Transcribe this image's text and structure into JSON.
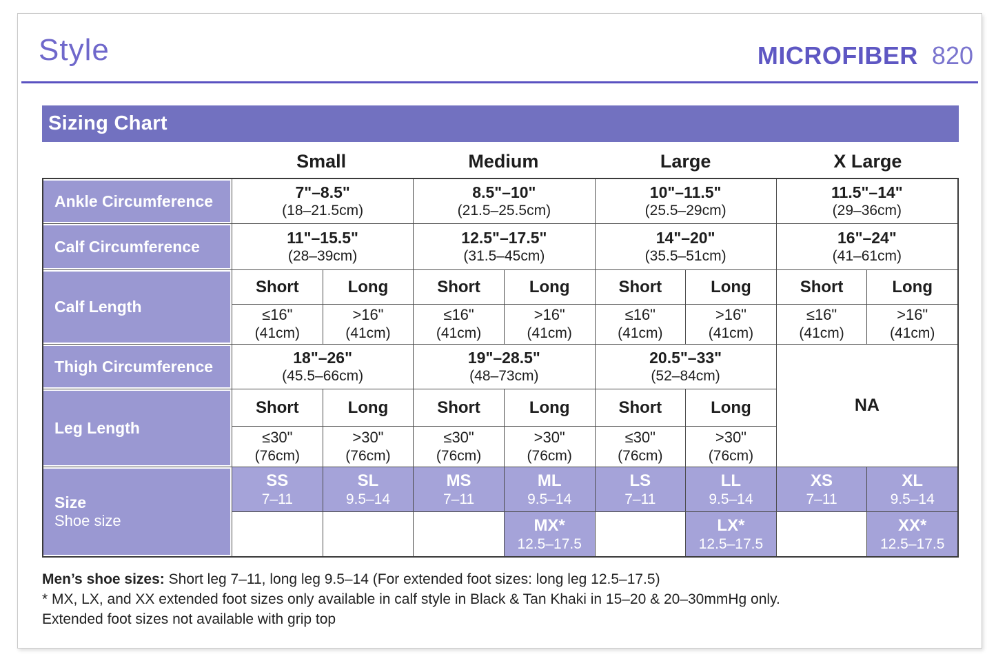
{
  "header": {
    "page_title": "Style",
    "brand": "MICROFIBER",
    "model": "820"
  },
  "banner": {
    "title": "Sizing Chart"
  },
  "colors": {
    "banner_purple": "#7271c0",
    "label_purple": "#9a98d2",
    "size_cell_purple": "#a5a3d9",
    "accent_purple": "#5e57c3"
  },
  "table": {
    "size_headers": [
      "Small",
      "Medium",
      "Large",
      "X Large"
    ],
    "ankle": {
      "label": "Ankle Circumference",
      "cells": [
        {
          "in": "7\"–8.5\"",
          "cm": "(18–21.5cm)"
        },
        {
          "in": "8.5\"–10\"",
          "cm": "(21.5–25.5cm)"
        },
        {
          "in": "10\"–11.5\"",
          "cm": "(25.5–29cm)"
        },
        {
          "in": "11.5\"–14\"",
          "cm": "(29–36cm)"
        }
      ]
    },
    "calf_circumference": {
      "label": "Calf Circumference",
      "cells": [
        {
          "in": "11\"–15.5\"",
          "cm": "(28–39cm)"
        },
        {
          "in": "12.5\"–17.5\"",
          "cm": "(31.5–45cm)"
        },
        {
          "in": "14\"–20\"",
          "cm": "(35.5–51cm)"
        },
        {
          "in": "16\"–24\"",
          "cm": "(41–61cm)"
        }
      ]
    },
    "calf_length": {
      "label": "Calf Length",
      "subheaders": [
        "Short",
        "Long",
        "Short",
        "Long",
        "Short",
        "Long",
        "Short",
        "Long"
      ],
      "values": [
        {
          "v": "≤16\"",
          "cm": "(41cm)"
        },
        {
          "v": ">16\"",
          "cm": "(41cm)"
        },
        {
          "v": "≤16\"",
          "cm": "(41cm)"
        },
        {
          "v": ">16\"",
          "cm": "(41cm)"
        },
        {
          "v": "≤16\"",
          "cm": "(41cm)"
        },
        {
          "v": ">16\"",
          "cm": "(41cm)"
        },
        {
          "v": "≤16\"",
          "cm": "(41cm)"
        },
        {
          "v": ">16\"",
          "cm": "(41cm)"
        }
      ]
    },
    "thigh": {
      "label": "Thigh Circumference",
      "cells": [
        {
          "in": "18\"–26\"",
          "cm": "(45.5–66cm)"
        },
        {
          "in": "19\"–28.5\"",
          "cm": "(48–73cm)"
        },
        {
          "in": "20.5\"–33\"",
          "cm": "(52–84cm)"
        }
      ],
      "na": "NA"
    },
    "leg_length": {
      "label": "Leg Length",
      "subheaders": [
        "Short",
        "Long",
        "Short",
        "Long",
        "Short",
        "Long"
      ],
      "values": [
        {
          "v": "≤30\"",
          "cm": "(76cm)"
        },
        {
          "v": ">30\"",
          "cm": "(76cm)"
        },
        {
          "v": "≤30\"",
          "cm": "(76cm)"
        },
        {
          "v": ">30\"",
          "cm": "(76cm)"
        },
        {
          "v": "≤30\"",
          "cm": "(76cm)"
        },
        {
          "v": ">30\"",
          "cm": "(76cm)"
        }
      ]
    },
    "size": {
      "label": "Size",
      "sublabel": "Shoe size",
      "row1": [
        {
          "code": "SS",
          "range": "7–11"
        },
        {
          "code": "SL",
          "range": "9.5–14"
        },
        {
          "code": "MS",
          "range": "7–11"
        },
        {
          "code": "ML",
          "range": "9.5–14"
        },
        {
          "code": "LS",
          "range": "7–11"
        },
        {
          "code": "LL",
          "range": "9.5–14"
        },
        {
          "code": "XS",
          "range": "7–11"
        },
        {
          "code": "XL",
          "range": "9.5–14"
        }
      ],
      "row2": {
        "mx": {
          "code": "MX*",
          "range": "12.5–17.5"
        },
        "lx": {
          "code": "LX*",
          "range": "12.5–17.5"
        },
        "xx": {
          "code": "XX*",
          "range": "12.5–17.5"
        }
      }
    }
  },
  "footnotes": {
    "lead": "Men’s shoe sizes:",
    "line1": " Short leg 7–11, long leg 9.5–14 (For extended foot sizes: long leg 12.5–17.5)",
    "line2": "* MX, LX, and XX extended foot sizes only available in calf style in Black & Tan Khaki in 15–20 & 20–30mmHg only.",
    "line3": "Extended foot sizes not available with grip top"
  }
}
